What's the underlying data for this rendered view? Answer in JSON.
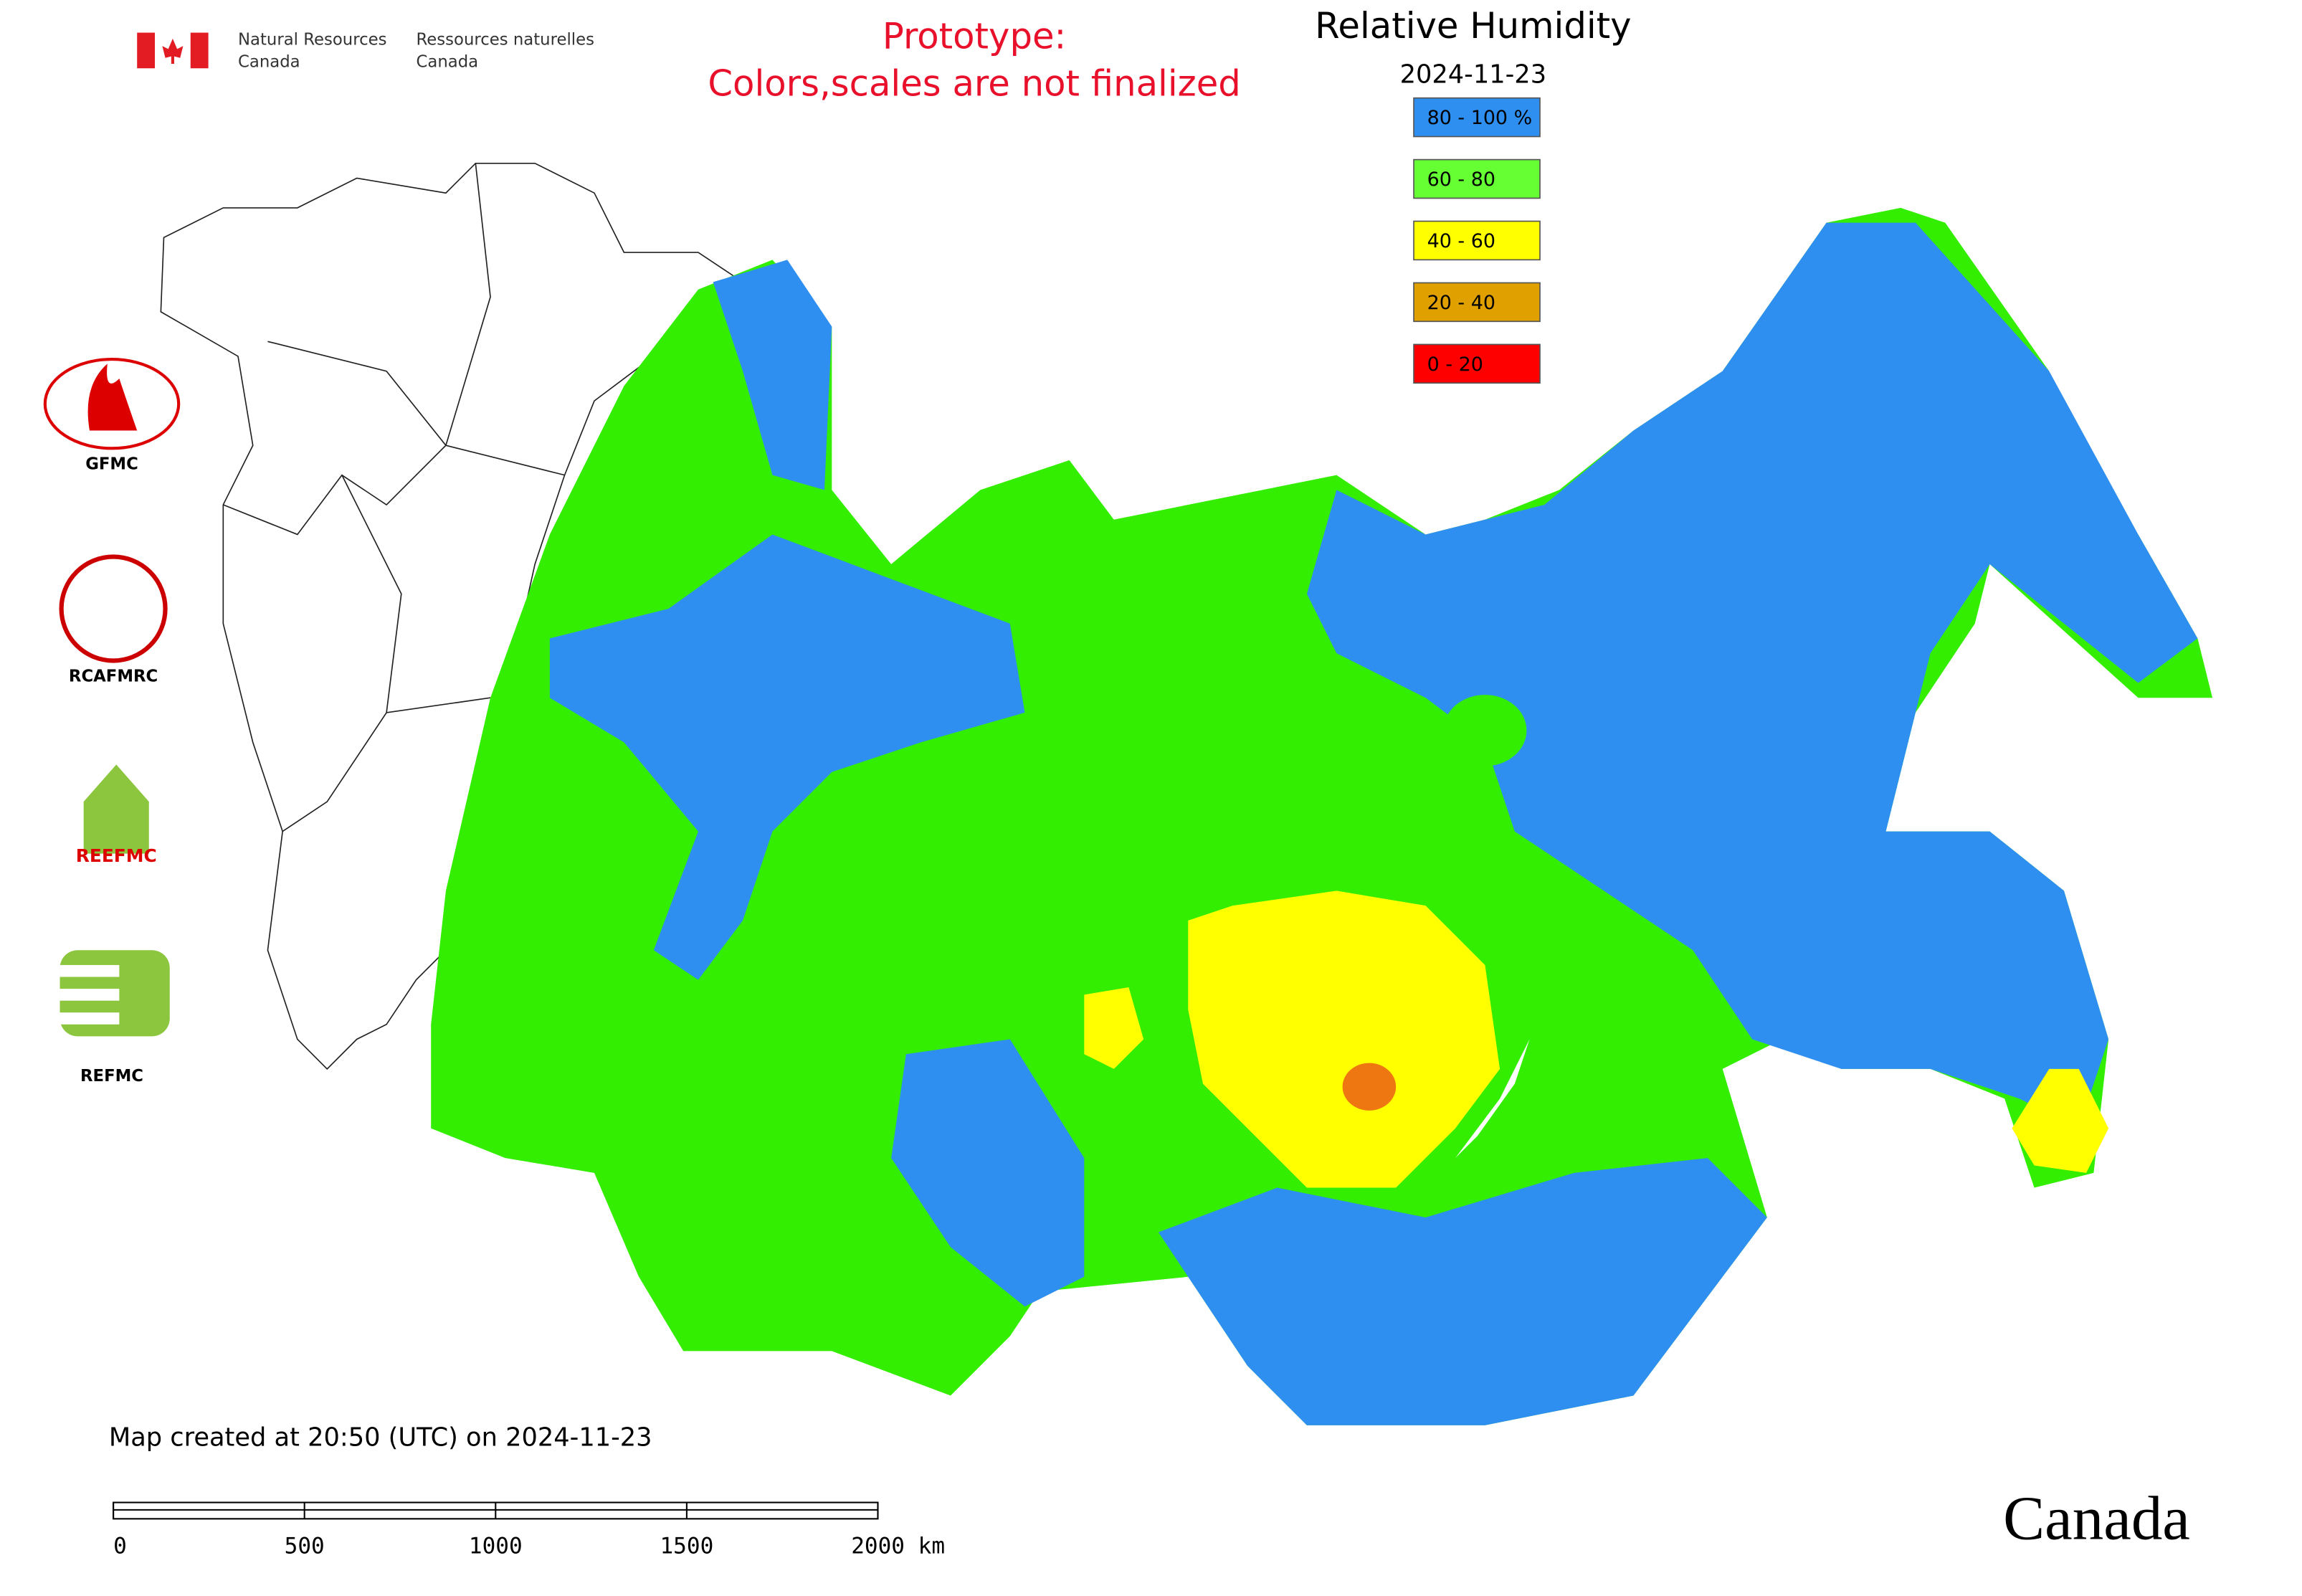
{
  "header": {
    "agency_en": [
      "Natural Resources",
      "Canada"
    ],
    "agency_fr": [
      "Ressources naturelles",
      "Canada"
    ],
    "notice": [
      "Prototype:",
      "Colors,scales are not finalized"
    ]
  },
  "map": {
    "title": "Relative Humidity",
    "date": "2024-11-23",
    "legend": [
      {
        "label": "80 - 100 %",
        "color": "#2f8ff0"
      },
      {
        "label": "60 - 80",
        "color": "#66ff33"
      },
      {
        "label": "40 - 60",
        "color": "#ffff00"
      },
      {
        "label": "20 - 40",
        "color": "#e0a000"
      },
      {
        "label": "0 - 20",
        "color": "#ff0000"
      }
    ],
    "centers": [
      "GFMC",
      "RCAFMRC",
      "REEFMC",
      "REFMC"
    ],
    "created": "Map created at 20:50 (UTC) on 2024-11-23",
    "scale_bar": [
      "0",
      "500",
      "1000",
      "1500",
      "2000 km"
    ]
  },
  "footer": {
    "wordmark": "Canada"
  }
}
